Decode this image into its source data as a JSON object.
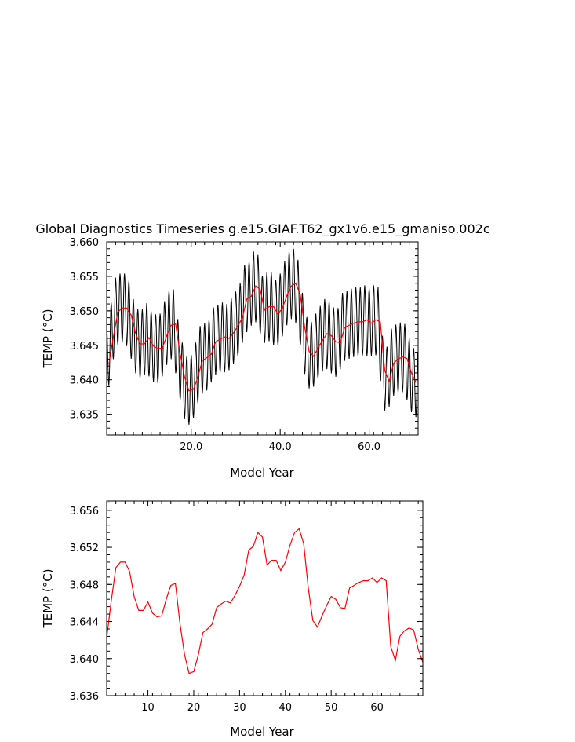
{
  "title": "Global Diagnostics Timeseries g.e15.GIAF.T62_gx1v6.e15_gmaniso.002c",
  "chart_data": [
    {
      "type": "line",
      "xlabel": "Model Year",
      "ylabel": "TEMP (°C)",
      "xlim": [
        1,
        71
      ],
      "ylim": [
        3.632,
        3.66
      ],
      "xticks": [
        20,
        40,
        60
      ],
      "xtick_labels": [
        "20.0",
        "40.0",
        "60.0"
      ],
      "yticks": [
        3.635,
        3.64,
        3.645,
        3.65,
        3.655,
        3.66
      ],
      "ytick_labels": [
        "3.635",
        "3.640",
        "3.645",
        "3.650",
        "3.655",
        "3.660"
      ],
      "series": [
        {
          "color": "#000000",
          "kind": "monthly",
          "amplitude": 0.005
        },
        {
          "color": "#ff0000",
          "kind": "annual"
        }
      ]
    },
    {
      "type": "line",
      "xlabel": "Model Year",
      "ylabel": "TEMP (°C)",
      "xlim": [
        1,
        70
      ],
      "ylim": [
        3.636,
        3.657
      ],
      "xticks": [
        10,
        20,
        30,
        40,
        50,
        60
      ],
      "xtick_labels": [
        "10",
        "20",
        "30",
        "40",
        "50",
        "60"
      ],
      "yticks": [
        3.636,
        3.64,
        3.644,
        3.648,
        3.652,
        3.656
      ],
      "ytick_labels": [
        "3.636",
        "3.640",
        "3.644",
        "3.648",
        "3.652",
        "3.656"
      ],
      "series": [
        {
          "color": "#ff0000",
          "kind": "annual"
        }
      ]
    }
  ],
  "annual_years": [
    1,
    2,
    3,
    4,
    5,
    6,
    7,
    8,
    9,
    10,
    11,
    12,
    13,
    14,
    15,
    16,
    17,
    18,
    19,
    20,
    21,
    22,
    23,
    24,
    25,
    26,
    27,
    28,
    29,
    30,
    31,
    32,
    33,
    34,
    35,
    36,
    37,
    38,
    39,
    40,
    41,
    42,
    43,
    44,
    45,
    46,
    47,
    48,
    49,
    50,
    51,
    52,
    53,
    54,
    55,
    56,
    57,
    58,
    59,
    60,
    61,
    62,
    63,
    64,
    65,
    66,
    67,
    68,
    69,
    70
  ],
  "annual_values": [
    3.6422,
    3.6462,
    3.6498,
    3.6504,
    3.6504,
    3.6494,
    3.6467,
    3.6452,
    3.6452,
    3.6461,
    3.6449,
    3.6445,
    3.6446,
    3.6464,
    3.6479,
    3.6481,
    3.6438,
    3.6404,
    3.6384,
    3.6386,
    3.6404,
    3.6428,
    3.6432,
    3.6437,
    3.6455,
    3.6459,
    3.6462,
    3.646,
    3.6468,
    3.6478,
    3.649,
    3.6517,
    3.6521,
    3.6536,
    3.6531,
    3.6501,
    3.6506,
    3.6506,
    3.6495,
    3.6504,
    3.6522,
    3.6536,
    3.654,
    3.6524,
    3.6476,
    3.6441,
    3.6434,
    3.6446,
    3.6457,
    3.6467,
    3.6464,
    3.6455,
    3.6454,
    3.6476,
    3.6479,
    3.6482,
    3.6484,
    3.6484,
    3.6487,
    3.6482,
    3.6487,
    3.6484,
    3.6413,
    3.6398,
    3.6424,
    3.643,
    3.6433,
    3.6431,
    3.641,
    3.6396
  ]
}
